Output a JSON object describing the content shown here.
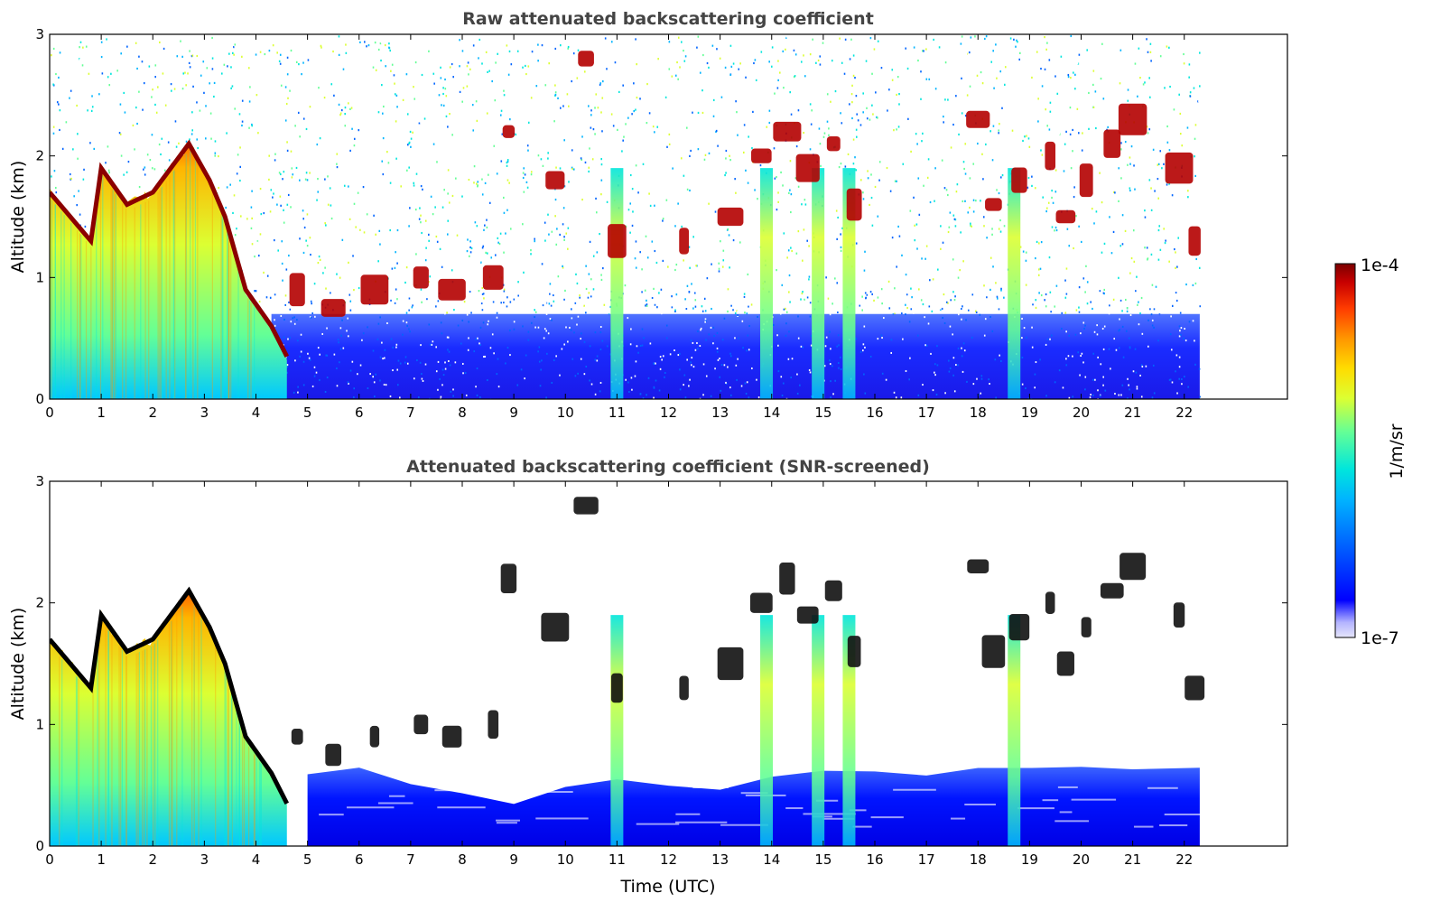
{
  "chart_data": [
    {
      "type": "heatmap",
      "title": "Raw attenuated backscattering coefficient",
      "xlabel": "",
      "ylabel": "Altitude (km)",
      "xlim": [
        0,
        24
      ],
      "ylim": [
        0,
        3
      ],
      "x_ticks": [
        "0",
        "1",
        "2",
        "3",
        "4",
        "5",
        "6",
        "7",
        "8",
        "9",
        "10",
        "11",
        "12",
        "13",
        "14",
        "15",
        "16",
        "17",
        "18",
        "19",
        "20",
        "21",
        "22"
      ],
      "y_ticks": [
        "0",
        "1",
        "2",
        "3"
      ],
      "data_extent_hours": 22.3,
      "screened": false,
      "features": {
        "aerosol_layer_top_km": [
          [
            0,
            1.7
          ],
          [
            0.5,
            1.45
          ],
          [
            0.8,
            1.3
          ],
          [
            1.0,
            1.9
          ],
          [
            1.5,
            1.6
          ],
          [
            2.0,
            1.7
          ],
          [
            2.7,
            2.1
          ],
          [
            3.1,
            1.8
          ],
          [
            3.4,
            1.5
          ],
          [
            3.8,
            0.9
          ],
          [
            4.3,
            0.6
          ],
          [
            4.6,
            0.35
          ]
        ],
        "cloud_columns_hours": [
          11.0,
          13.9,
          14.9,
          15.5,
          18.7
        ],
        "cloud_patches": [
          [
            4.8,
            0.9
          ],
          [
            5.5,
            0.75
          ],
          [
            6.3,
            0.9
          ],
          [
            7.2,
            1.0
          ],
          [
            7.8,
            0.9
          ],
          [
            8.6,
            1.0
          ],
          [
            8.9,
            2.2
          ],
          [
            9.8,
            1.8
          ],
          [
            10.4,
            2.8
          ],
          [
            11.0,
            1.3
          ],
          [
            12.3,
            1.3
          ],
          [
            13.2,
            1.5
          ],
          [
            13.8,
            2.0
          ],
          [
            14.3,
            2.2
          ],
          [
            14.7,
            1.9
          ],
          [
            15.2,
            2.1
          ],
          [
            15.6,
            1.6
          ],
          [
            18.0,
            2.3
          ],
          [
            18.3,
            1.6
          ],
          [
            18.8,
            1.8
          ],
          [
            19.4,
            2.0
          ],
          [
            19.7,
            1.5
          ],
          [
            20.1,
            1.8
          ],
          [
            20.6,
            2.1
          ],
          [
            21.0,
            2.3
          ],
          [
            21.9,
            1.9
          ],
          [
            22.2,
            1.3
          ]
        ]
      }
    },
    {
      "type": "heatmap",
      "title": "Attenuated backscattering coefficient (SNR-screened)",
      "xlabel": "Time (UTC)",
      "ylabel": "Altitude (km)",
      "xlim": [
        0,
        24
      ],
      "ylim": [
        0,
        3
      ],
      "x_ticks": [
        "0",
        "1",
        "2",
        "3",
        "4",
        "5",
        "6",
        "7",
        "8",
        "9",
        "10",
        "11",
        "12",
        "13",
        "14",
        "15",
        "16",
        "17",
        "18",
        "19",
        "20",
        "21",
        "22"
      ],
      "y_ticks": [
        "0",
        "1",
        "2",
        "3"
      ],
      "data_extent_hours": 22.3,
      "screened": true,
      "features": {
        "boundary_layer_top_km": [
          [
            5.0,
            0.6
          ],
          [
            6.0,
            0.65
          ],
          [
            7.0,
            0.5
          ],
          [
            8.0,
            0.45
          ],
          [
            9.0,
            0.35
          ],
          [
            10.0,
            0.5
          ],
          [
            11.0,
            0.55
          ],
          [
            12.0,
            0.5
          ],
          [
            13.0,
            0.45
          ],
          [
            14.0,
            0.55
          ],
          [
            15.0,
            0.6
          ],
          [
            16.0,
            0.6
          ],
          [
            17.0,
            0.6
          ],
          [
            18.0,
            0.65
          ],
          [
            19.0,
            0.65
          ],
          [
            20.0,
            0.65
          ],
          [
            21.0,
            0.65
          ],
          [
            22.3,
            0.65
          ]
        ]
      }
    }
  ],
  "colorbar": {
    "label": "1/m/sr",
    "max_label": "1e-4",
    "min_label": "1e-7",
    "colormap": [
      "#e6e6fa",
      "#b4b4ff",
      "#0000ff",
      "#0064ff",
      "#00b4ff",
      "#00e6dc",
      "#64ff96",
      "#dcff32",
      "#ffdc00",
      "#ff9600",
      "#ff3c00",
      "#c80000",
      "#7a0000"
    ]
  }
}
